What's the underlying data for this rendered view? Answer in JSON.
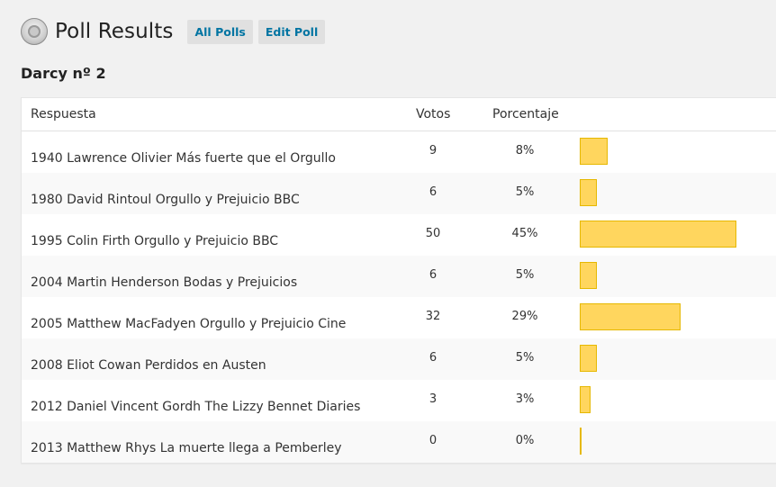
{
  "header": {
    "title": "Poll Results",
    "buttons": [
      {
        "label": "All Polls"
      },
      {
        "label": "Edit Poll"
      }
    ],
    "icon": "poll-icon"
  },
  "poll": {
    "name": "Darcy nº 2"
  },
  "table": {
    "columns": [
      "Respuesta",
      "Votos",
      "Porcentaje"
    ],
    "rows": [
      {
        "answer": "1940 Lawrence Olivier Más fuerte que el Orgullo",
        "votes": "9",
        "percent": "8%",
        "pct_value": 8
      },
      {
        "answer": "1980 David Rintoul Orgullo y Prejuicio BBC",
        "votes": "6",
        "percent": "5%",
        "pct_value": 5
      },
      {
        "answer": "1995 Colin Firth Orgullo y Prejuicio BBC",
        "votes": "50",
        "percent": "45%",
        "pct_value": 45
      },
      {
        "answer": "2004 Martin Henderson Bodas y Prejuicios",
        "votes": "6",
        "percent": "5%",
        "pct_value": 5
      },
      {
        "answer": "2005 Matthew MacFadyen Orgullo y Prejuicio Cine",
        "votes": "32",
        "percent": "29%",
        "pct_value": 29
      },
      {
        "answer": "2008 Eliot Cowan Perdidos en Austen",
        "votes": "6",
        "percent": "5%",
        "pct_value": 5
      },
      {
        "answer": "2012 Daniel Vincent Gordh The Lizzy Bennet Diaries",
        "votes": "3",
        "percent": "3%",
        "pct_value": 3
      },
      {
        "answer": "2013 Matthew Rhys La muerte llega a Pemberley",
        "votes": "0",
        "percent": "0%",
        "pct_value": 0
      }
    ]
  },
  "colors": {
    "bar_fill": "#ffd65e",
    "bar_border": "#e6b800",
    "link": "#0074a2",
    "button_bg": "#e0e0e0",
    "page_bg": "#f1f1f1"
  }
}
